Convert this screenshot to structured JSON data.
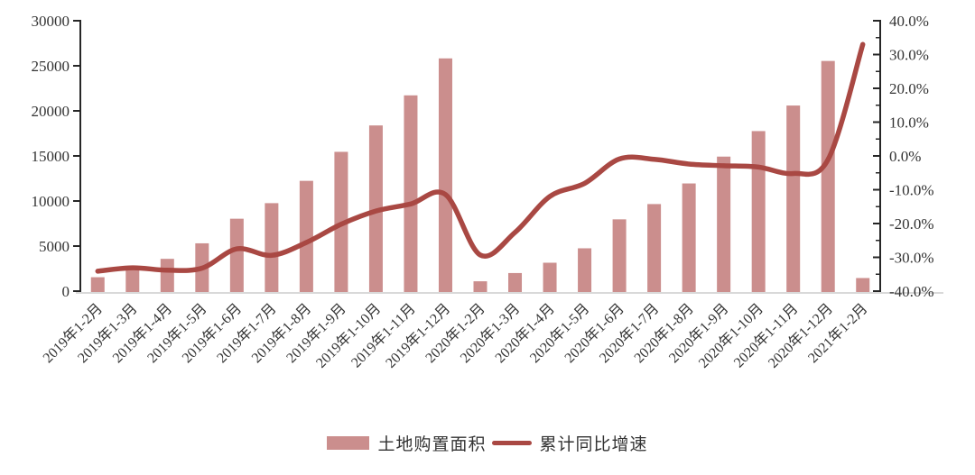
{
  "chart_data": {
    "type": "combo-bar-line",
    "categories": [
      "2019年1-2月",
      "2019年1-3月",
      "2019年1-4月",
      "2019年1-5月",
      "2019年1-6月",
      "2019年1-7月",
      "2019年1-8月",
      "2019年1-9月",
      "2019年1-10月",
      "2019年1-11月",
      "2019年1-12月",
      "2020年1-2月",
      "2020年1-3月",
      "2020年1-4月",
      "2020年1-5月",
      "2020年1-6月",
      "2020年1-7月",
      "2020年1-8月",
      "2020年1-9月",
      "2020年1-10月",
      "2020年1-11月",
      "2020年1-12月",
      "2021年1-2月"
    ],
    "series": [
      {
        "name": "土地购置面积",
        "type": "bar",
        "axis": "left",
        "color": "#cb8e8d",
        "values": [
          1545,
          2543,
          3582,
          5305,
          8035,
          9761,
          12236,
          15454,
          18383,
          21720,
          25822,
          1092,
          2007,
          3151,
          4752,
          7965,
          9659,
          11947,
          14925,
          17755,
          20591,
          25536,
          1453
        ]
      },
      {
        "name": "累计同比增速",
        "type": "line",
        "axis": "right",
        "color": "#a94843",
        "values": [
          -34.1,
          -33.1,
          -33.8,
          -33.2,
          -27.5,
          -29.4,
          -25.6,
          -20.2,
          -16.3,
          -14.2,
          -11.4,
          -29.3,
          -22.6,
          -12.0,
          -8.1,
          -0.9,
          -1.0,
          -2.4,
          -2.9,
          -3.3,
          -5.2,
          -1.1,
          33.0
        ]
      }
    ],
    "left_axis": {
      "min": 0,
      "max": 30000,
      "step": 5000,
      "tick_labels": [
        "0",
        "5000",
        "10000",
        "15000",
        "20000",
        "25000",
        "30000"
      ]
    },
    "right_axis": {
      "min": -40,
      "max": 40,
      "step": 10,
      "minor_step": 5,
      "tick_labels": [
        "-40.0%",
        "-30.0%",
        "-20.0%",
        "-10.0%",
        "0.0%",
        "10.0%",
        "20.0%",
        "30.0%",
        "40.0%"
      ]
    },
    "grid": false,
    "legend_position": "bottom"
  },
  "legend": {
    "items": [
      {
        "label": "土地购置面积",
        "swatch": "bar"
      },
      {
        "label": "累计同比增速",
        "swatch": "line"
      }
    ]
  },
  "colors": {
    "bar": "#cb8e8d",
    "line": "#a94843",
    "axis": "#262626",
    "tick_label": "#333333",
    "baseline": "#d9d9d9",
    "background": "#ffffff"
  }
}
